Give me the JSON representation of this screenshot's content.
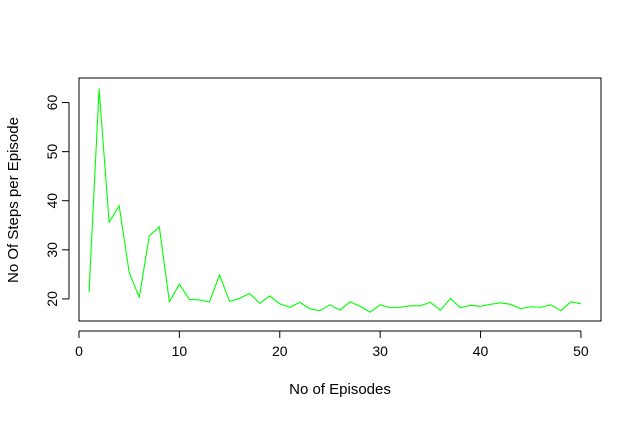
{
  "chart_data": {
    "type": "line",
    "title": "",
    "xlabel": "No of Episodes",
    "ylabel": "No Of Steps per Episode",
    "xlim": [
      0,
      52
    ],
    "ylim": [
      15.5,
      65
    ],
    "x_ticks": [
      0,
      10,
      20,
      30,
      40,
      50
    ],
    "y_ticks": [
      20,
      30,
      40,
      50,
      60
    ],
    "grid": false,
    "legend": "none",
    "series": [
      {
        "color": "#00ff00",
        "x": [
          1,
          2,
          3,
          4,
          5,
          6,
          7,
          8,
          9,
          10,
          11,
          12,
          13,
          14,
          15,
          16,
          17,
          18,
          19,
          20,
          21,
          22,
          23,
          24,
          25,
          26,
          27,
          28,
          29,
          30,
          31,
          32,
          33,
          34,
          35,
          36,
          37,
          38,
          39,
          40,
          41,
          42,
          43,
          44,
          45,
          46,
          47,
          48,
          49,
          50
        ],
        "values": [
          21.4,
          62.8,
          35.6,
          39.0,
          25.4,
          20.3,
          32.8,
          34.7,
          19.4,
          23.0,
          19.9,
          19.8,
          19.4,
          24.9,
          19.5,
          20.1,
          21.1,
          19.1,
          20.6,
          19.0,
          18.3,
          19.3,
          18.0,
          17.6,
          18.8,
          17.7,
          19.4,
          18.5,
          17.3,
          18.8,
          18.2,
          18.3,
          18.6,
          18.6,
          19.3,
          17.7,
          20.1,
          18.2,
          18.7,
          18.5,
          18.9,
          19.2,
          18.9,
          18.0,
          18.4,
          18.3,
          18.8,
          17.6,
          19.4,
          19.0
        ]
      }
    ]
  }
}
